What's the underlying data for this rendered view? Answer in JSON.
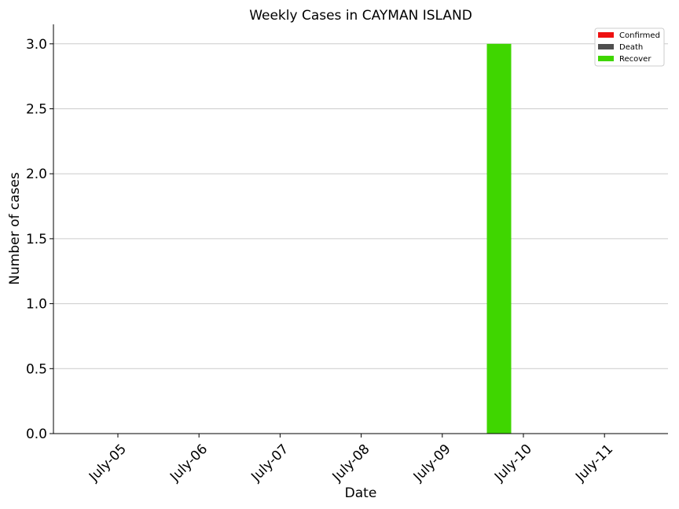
{
  "chart_data": {
    "type": "bar",
    "title": "Weekly Cases in CAYMAN ISLAND",
    "xlabel": "Date",
    "ylabel": "Number of cases",
    "categories": [
      "July-05",
      "July-06",
      "July-07",
      "July-08",
      "July-09",
      "July-10",
      "July-11"
    ],
    "series": [
      {
        "name": "Confirmed",
        "color": "#ee1111",
        "values": [
          0,
          0,
          0,
          0,
          0,
          0,
          0
        ]
      },
      {
        "name": "Death",
        "color": "#4f4f4f",
        "values": [
          0,
          0,
          0,
          0,
          0,
          0,
          0
        ]
      },
      {
        "name": "Recover",
        "color": "#3fd600",
        "values": [
          0,
          0,
          0,
          0,
          0,
          3,
          0
        ]
      }
    ],
    "ylim": [
      0,
      3.15
    ],
    "yticks": [
      "0.0",
      "0.5",
      "1.0",
      "1.5",
      "2.0",
      "2.5",
      "3.0"
    ],
    "ytick_values": [
      0,
      0.5,
      1.0,
      1.5,
      2.0,
      2.5,
      3.0
    ],
    "grid": "horizontal",
    "legend_position": "top-right"
  }
}
